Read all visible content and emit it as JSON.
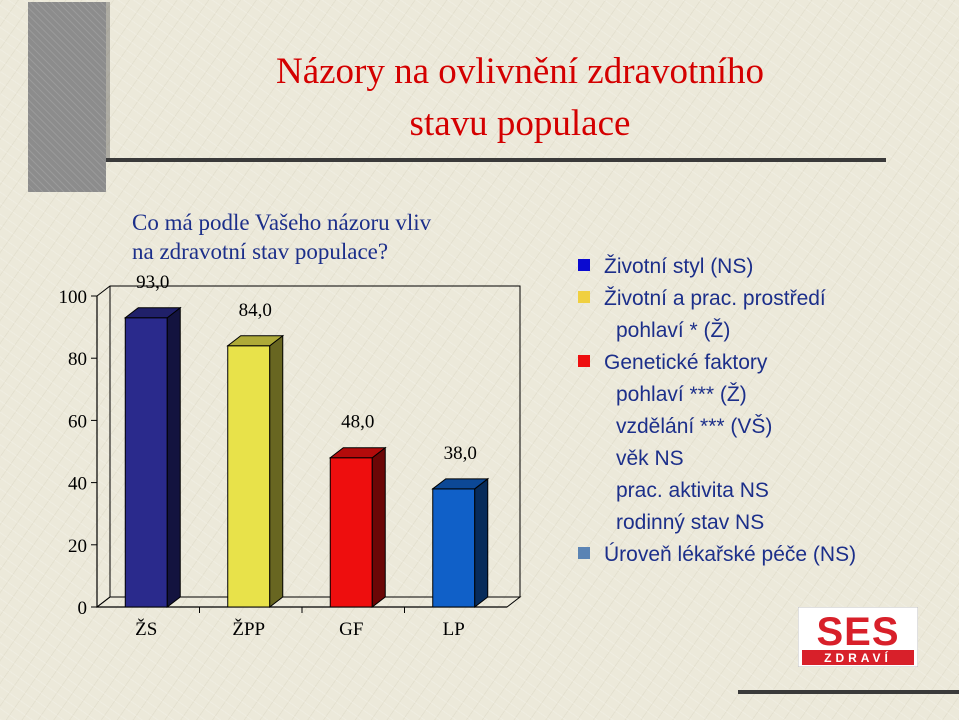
{
  "title": {
    "line1": "Názory na ovlivnění zdravotního",
    "line2": "stavu populace"
  },
  "subtitle": {
    "line1": "Co má podle Vašeho názoru vliv",
    "line2": "na zdravotní stav populace?"
  },
  "colors": {
    "title": "#d40000",
    "text": "#1c2f8a",
    "background": "#ece9da"
  },
  "chart_data": {
    "type": "bar",
    "categories": [
      "ŽS",
      "ŽPP",
      "GF",
      "LP"
    ],
    "values": [
      93.0,
      84.0,
      48.0,
      38.0
    ],
    "data_labels": [
      "93,0",
      "84,0",
      "48,0",
      "38,0"
    ],
    "bar_colors": [
      "#2a2a8c",
      "#e8e24a",
      "#ee0e0e",
      "#1060c8"
    ],
    "yticks": [
      "0",
      "20",
      "40",
      "60",
      "80",
      "100"
    ],
    "ylim": [
      0,
      100
    ],
    "three_d": true,
    "grid": false
  },
  "legend": [
    {
      "swatch": "#0a0ad0",
      "text": "Životní styl   (NS)"
    },
    {
      "swatch": "#f0d040",
      "text": "Životní a prac. prostředí"
    },
    {
      "swatch": null,
      "text": "pohlaví * (Ž)"
    },
    {
      "swatch": "#ee0e0e",
      "text": "Genetické faktory"
    },
    {
      "swatch": null,
      "text": "pohlaví *** (Ž)"
    },
    {
      "swatch": null,
      "text": "vzdělání *** (VŠ)"
    },
    {
      "swatch": null,
      "text": "věk  NS"
    },
    {
      "swatch": null,
      "text": "prac. aktivita    NS"
    },
    {
      "swatch": null,
      "text": "rodinný stav     NS"
    },
    {
      "swatch": "#5b84b4",
      "text": "Úroveň lékařské péče (NS)"
    }
  ],
  "logo": {
    "top_text": "SES",
    "bottom_text": "ZDRAVÍ",
    "color": "#d8202a"
  }
}
